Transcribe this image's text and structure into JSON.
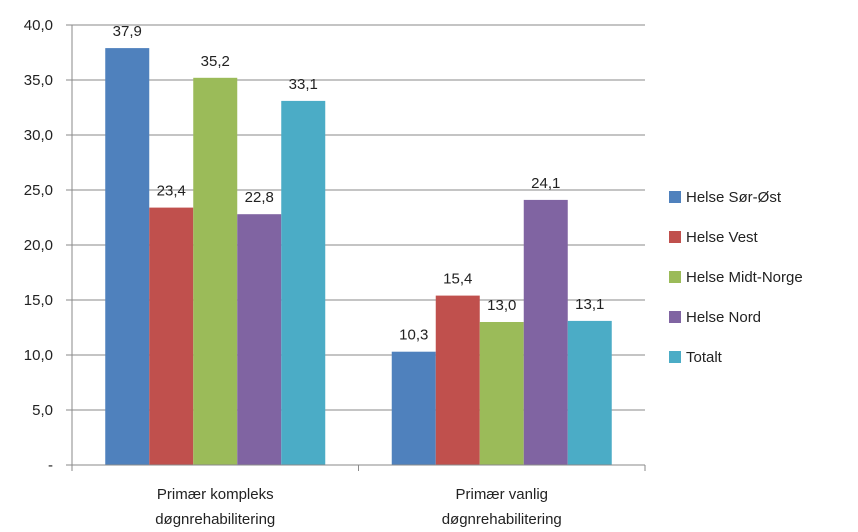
{
  "chart_data": {
    "type": "bar",
    "categories": [
      [
        "Primær kompleks",
        "døgnrehabilitering"
      ],
      [
        "Primær vanlig",
        "døgnrehabilitering"
      ]
    ],
    "series": [
      {
        "name": "Helse Sør-Øst",
        "color": "#4f81bd",
        "values": [
          37.9,
          10.3
        ],
        "labels": [
          "37,9",
          "10,3"
        ]
      },
      {
        "name": "Helse Vest",
        "color": "#c0504d",
        "values": [
          23.4,
          15.4
        ],
        "labels": [
          "23,4",
          "15,4"
        ]
      },
      {
        "name": "Helse Midt-Norge",
        "color": "#9bbb59",
        "values": [
          35.2,
          13.0
        ],
        "labels": [
          "35,2",
          "13,0"
        ]
      },
      {
        "name": "Helse Nord",
        "color": "#8064a2",
        "values": [
          22.8,
          24.1
        ],
        "labels": [
          "22,8",
          "24,1"
        ]
      },
      {
        "name": "Totalt",
        "color": "#4bacc6",
        "values": [
          33.1,
          13.1
        ],
        "labels": [
          "33,1",
          "13,1"
        ]
      }
    ],
    "y_ticks": [
      {
        "value": 0,
        "label": "-"
      },
      {
        "value": 5,
        "label": "5,0"
      },
      {
        "value": 10,
        "label": "10,0"
      },
      {
        "value": 15,
        "label": "15,0"
      },
      {
        "value": 20,
        "label": "20,0"
      },
      {
        "value": 25,
        "label": "25,0"
      },
      {
        "value": 30,
        "label": "30,0"
      },
      {
        "value": 35,
        "label": "35,0"
      },
      {
        "value": 40,
        "label": "40,0"
      }
    ],
    "ylim": [
      0,
      40
    ],
    "grid": true,
    "legend_position": "right",
    "title": "",
    "xlabel": "",
    "ylabel": ""
  }
}
